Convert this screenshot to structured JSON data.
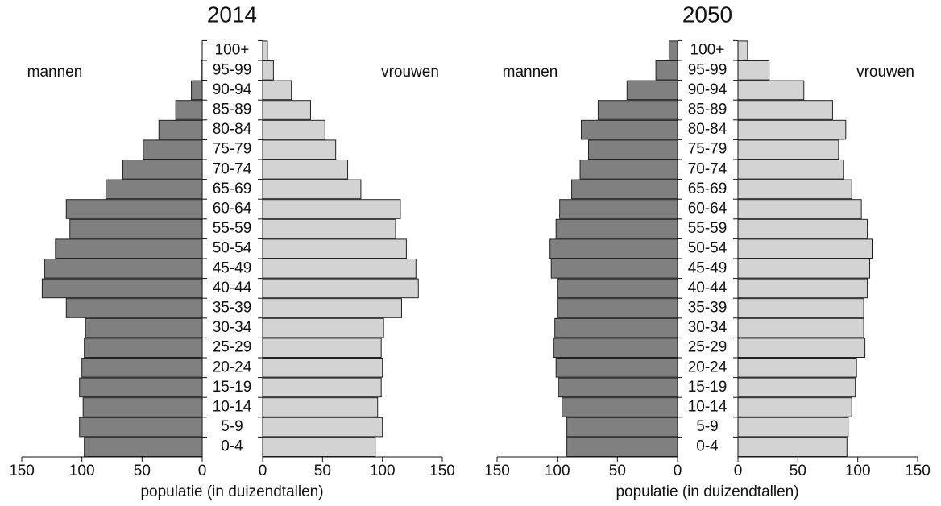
{
  "chart_data": [
    {
      "type": "pyramid",
      "title": "2014",
      "xlabel": "populatie (in duizendtallen)",
      "categories": [
        "0-4",
        "5-9",
        "10-14",
        "15-19",
        "20-24",
        "25-29",
        "30-34",
        "35-39",
        "40-44",
        "45-49",
        "50-54",
        "55-59",
        "60-64",
        "65-69",
        "70-74",
        "75-79",
        "80-84",
        "85-89",
        "90-94",
        "95-99",
        "100+"
      ],
      "series": [
        {
          "name": "mannen",
          "color": "#808080",
          "values": [
            98,
            102,
            99,
            102,
            100,
            98,
            97,
            113,
            133,
            131,
            122,
            110,
            113,
            80,
            66,
            49,
            36,
            22,
            9,
            1,
            0
          ]
        },
        {
          "name": "vrouwen",
          "color": "#d3d3d3",
          "values": [
            94,
            100,
            96,
            99,
            100,
            99,
            101,
            116,
            130,
            128,
            120,
            111,
            115,
            82,
            71,
            61,
            52,
            40,
            24,
            9,
            4
          ]
        }
      ],
      "xlim": [
        0,
        150
      ],
      "xticks": [
        0,
        50,
        100,
        150
      ]
    },
    {
      "type": "pyramid",
      "title": "2050",
      "xlabel": "populatie (in duizendtallen)",
      "categories": [
        "0-4",
        "5-9",
        "10-14",
        "15-19",
        "20-24",
        "25-29",
        "30-34",
        "35-39",
        "40-44",
        "45-49",
        "50-54",
        "55-59",
        "60-64",
        "65-69",
        "70-74",
        "75-79",
        "80-84",
        "85-89",
        "90-94",
        "95-99",
        "100+"
      ],
      "series": [
        {
          "name": "mannen",
          "color": "#808080",
          "values": [
            92,
            92,
            96,
            99,
            101,
            103,
            102,
            100,
            100,
            105,
            106,
            101,
            98,
            88,
            81,
            74,
            80,
            66,
            42,
            18,
            7
          ]
        },
        {
          "name": "vrouwen",
          "color": "#d3d3d3",
          "values": [
            91,
            92,
            95,
            98,
            99,
            106,
            105,
            105,
            108,
            110,
            112,
            108,
            103,
            95,
            88,
            84,
            90,
            79,
            55,
            26,
            8
          ]
        }
      ],
      "xlim": [
        0,
        150
      ],
      "xticks": [
        0,
        50,
        100,
        150
      ]
    }
  ]
}
